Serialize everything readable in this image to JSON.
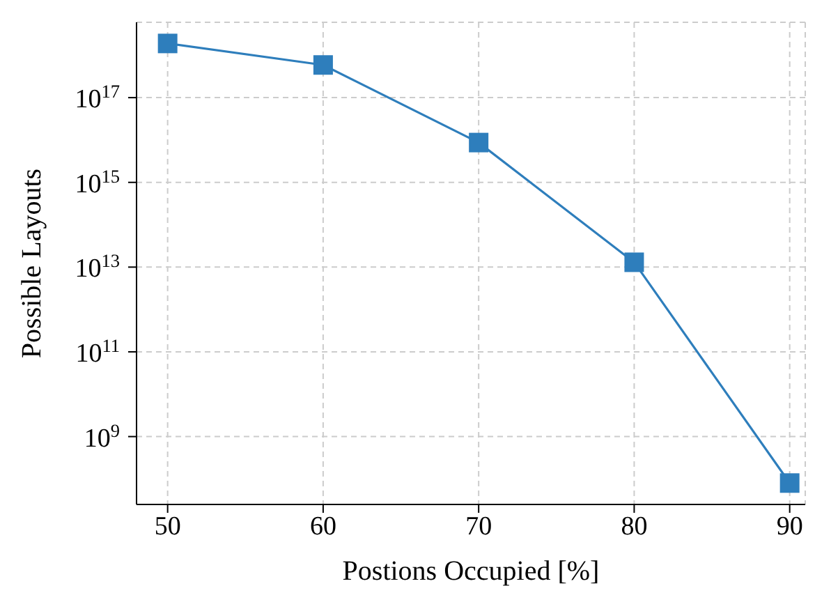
{
  "chart_data": {
    "type": "line",
    "xlabel": "Postions Occupied [%]",
    "ylabel": "Possible Layouts",
    "x": [
      50,
      60,
      70,
      80,
      90
    ],
    "series": [
      {
        "color": "#2e7ebc",
        "values": [
          1.9e+18,
          5.9e+17,
          8700000000000000.0,
          13000000000000.0,
          80000000.0
        ]
      }
    ],
    "log": "y",
    "grid": true,
    "marker": "square",
    "line_style": "solid",
    "xlim": [
      48,
      91
    ],
    "xticks": [
      50,
      60,
      70,
      80,
      90
    ],
    "ylim": [
      25000000.0,
      6e+18
    ],
    "yticks": [
      {
        "value": 1000000000.0,
        "label": "10$^{9}$"
      },
      {
        "value": 100000000000.0,
        "label": "10$^{11}$"
      },
      {
        "value": 10000000000000.0,
        "label": "10$^{13}$"
      },
      {
        "value": 1000000000000000.0,
        "label": "10$^{15}$"
      },
      {
        "value": 1e+17,
        "label": "10$^{17}$"
      }
    ]
  }
}
